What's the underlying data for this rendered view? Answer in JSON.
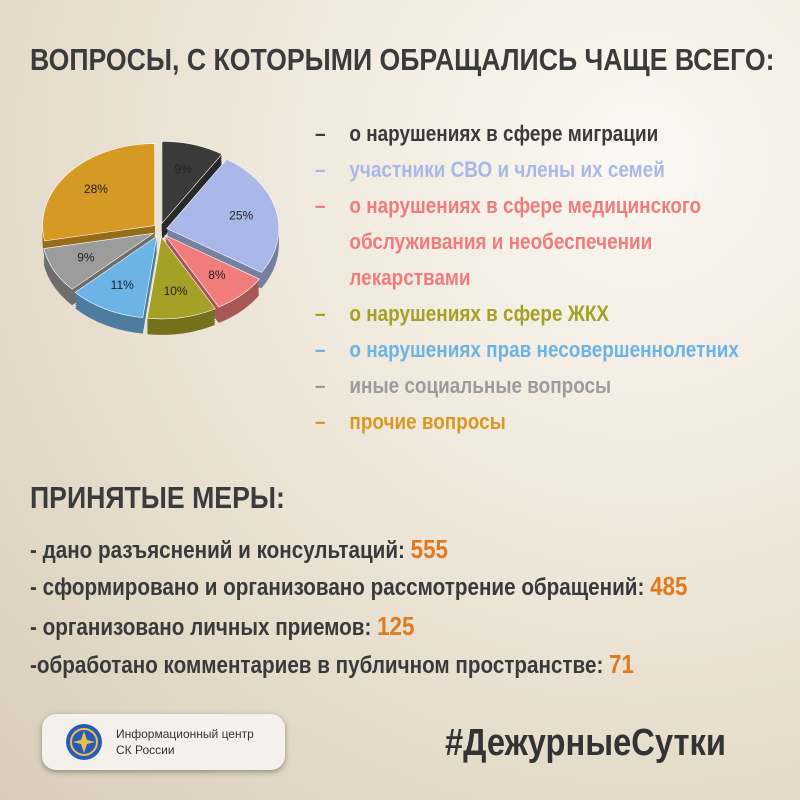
{
  "chart_data": {
    "type": "pie",
    "categories": [
      "о нарушениях в сфере миграции",
      "участники СВО и члены их семей",
      "о нарушениях в сфере медицинского обслуживания и необеспечении лекарствами",
      "о нарушениях в сфере ЖКХ",
      "о нарушениях прав несовершеннолетних",
      "иные социальные вопросы",
      "прочие вопросы"
    ],
    "values": [
      9,
      25,
      8,
      10,
      11,
      9,
      28
    ],
    "value_labels": [
      "9%",
      "25%",
      "8%",
      "10%",
      "11%",
      "9%",
      "28%"
    ],
    "colors": [
      "#3a3a3a",
      "#a9b8e8",
      "#f07c7c",
      "#a4a126",
      "#6cb3e6",
      "#9c9c9c",
      "#d69a24"
    ]
  },
  "header": {
    "title": "ВОПРОСЫ, С КОТОРЫМИ ОБРАЩАЛИСЬ ЧАЩЕ ВСЕГО:"
  },
  "measures": {
    "title": "ПРИНЯТЫЕ МЕРЫ:",
    "items": [
      {
        "label": "- дано разъяснений и консультаций:",
        "value": 555
      },
      {
        "label": "- сформировано и организовано рассмотрение обращений:",
        "value": 485
      },
      {
        "label": "- организовано личных приемов:",
        "value": 125
      },
      {
        "label": "-обработано комментариев в публичном пространстве:",
        "value": 71
      }
    ]
  },
  "footer": {
    "logo_lines": [
      "Информационный центр",
      "СК России"
    ],
    "hashtag": "#ДежурныеСутки"
  }
}
